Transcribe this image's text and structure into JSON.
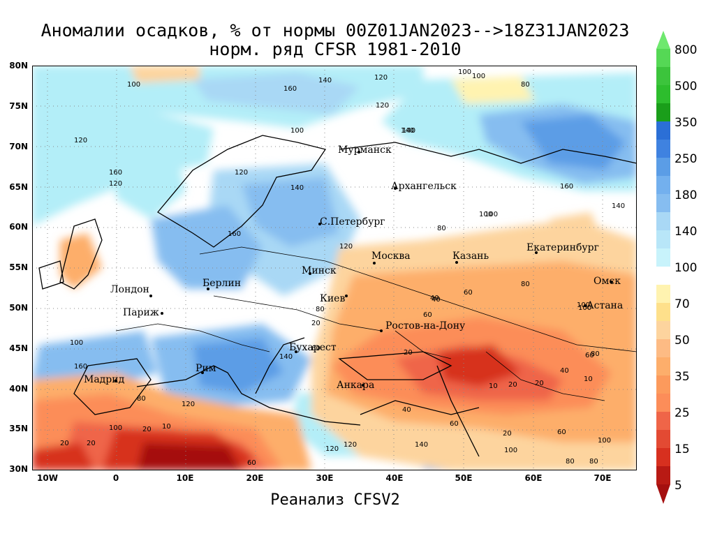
{
  "title": {
    "line1": "Аномалии осадков, % от нормы 00Z01JAN2023-->18Z31JAN2023",
    "line2": "норм. ряд CFSR 1981-2010"
  },
  "footer": "Реанализ CFSV2",
  "axes": {
    "y_labels": [
      "80N",
      "75N",
      "70N",
      "65N",
      "60N",
      "55N",
      "50N",
      "45N",
      "40N",
      "35N",
      "30N"
    ],
    "x_labels": [
      "10W",
      "0",
      "10E",
      "20E",
      "30E",
      "40E",
      "50E",
      "60E",
      "70E"
    ],
    "lat_range": [
      30,
      80
    ],
    "lon_range": [
      -12,
      75
    ],
    "grid": true
  },
  "legend": {
    "labels": [
      "800",
      "500",
      "350",
      "250",
      "180",
      "140",
      "100",
      "70",
      "50",
      "35",
      "25",
      "15",
      "5"
    ],
    "colors": {
      "c5": "#a50f0f",
      "c10": "#d7301f",
      "c20": "#ef6548",
      "c30": "#fc8d59",
      "c40": "#fdae6b",
      "c60": "#fdd49e",
      "c80": "#fff3b0",
      "neutral": "#ffffff",
      "p120": "#b3eef8",
      "p140": "#a9d8f5",
      "p160": "#86bdf0",
      "p200": "#5b9de6",
      "p300": "#2b6fd6",
      "p400": "#1a9e1a",
      "p500": "#2dbd2d",
      "p800": "#55d855"
    }
  },
  "cities": [
    {
      "name": "Мурманск"
    },
    {
      "name": "Архангельск"
    },
    {
      "name": "С.Петербург"
    },
    {
      "name": "Москва"
    },
    {
      "name": "Казань"
    },
    {
      "name": "Екатеринбург"
    },
    {
      "name": "Минск"
    },
    {
      "name": "Берлин"
    },
    {
      "name": "Лондон"
    },
    {
      "name": "Париж"
    },
    {
      "name": "Киев"
    },
    {
      "name": "Омск"
    },
    {
      "name": "Астана"
    },
    {
      "name": "Ростов-на-Дону"
    },
    {
      "name": "Бухарест"
    },
    {
      "name": "Рим"
    },
    {
      "name": "Мадрид"
    },
    {
      "name": "Анкара"
    }
  ],
  "contour_labels": [
    "100",
    "160",
    "140",
    "120",
    "100",
    "100",
    "80",
    "120",
    "160",
    "120",
    "140",
    "100",
    "120",
    "140",
    "80",
    "120",
    "160",
    "100",
    "80",
    "60",
    "40",
    "20",
    "10",
    "20",
    "20",
    "40",
    "60",
    "10",
    "20",
    "20",
    "60",
    "80",
    "100",
    "120",
    "140",
    "160",
    "100",
    "120",
    "140",
    "100",
    "80",
    "60",
    "40",
    "20",
    "10",
    "20",
    "60",
    "80",
    "100",
    "120",
    "80",
    "60",
    "40",
    "20",
    "60",
    "80",
    "100",
    "140",
    "100",
    "160",
    "100",
    "120",
    "140"
  ]
}
